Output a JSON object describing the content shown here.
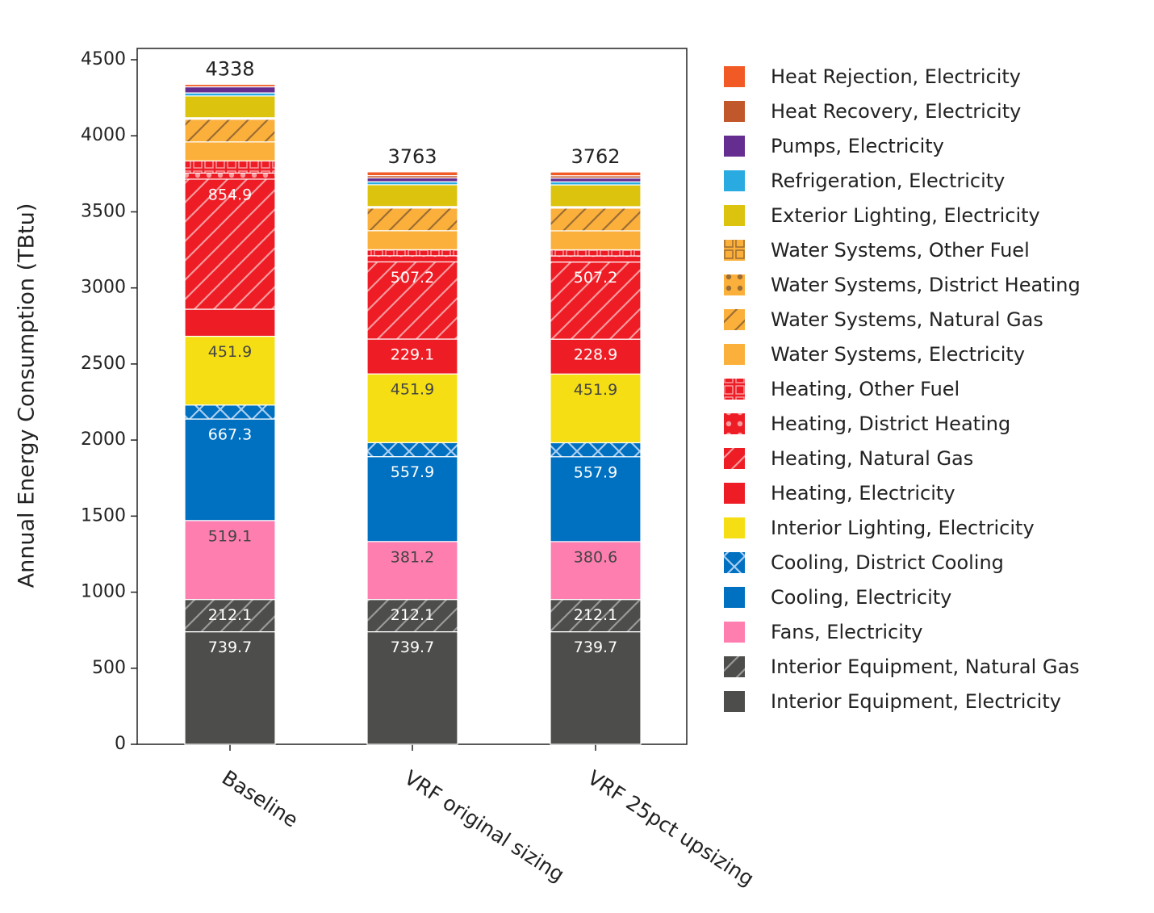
{
  "chart_data": {
    "type": "stacked_bar",
    "y_label": "Annual Energy Consumption (TBtu)",
    "categories": [
      "Baseline",
      "VRF original sizing",
      "VRF 25pct upsizing"
    ],
    "totals": [
      4338,
      3763,
      3762
    ],
    "ylim": [
      0,
      4500
    ],
    "yticks": [
      0,
      500,
      1000,
      1500,
      2000,
      2500,
      3000,
      3500,
      4000,
      4500
    ],
    "series": [
      {
        "name": "Interior Equipment, Electricity",
        "color": "#4d4d4b",
        "values": [
          739.7,
          739.7,
          739.7
        ],
        "value_labels": [
          "739.7",
          "739.7",
          "739.7"
        ],
        "label_color": "#ffffff"
      },
      {
        "name": "Interior Equipment, Natural Gas",
        "color": "#4d4d4b",
        "pattern": "slash",
        "pattern_color": "#9a9a9a",
        "values": [
          212.1,
          212.1,
          212.1
        ],
        "value_labels": [
          "212.1",
          "212.1",
          "212.1"
        ],
        "label_color": "#ffffff"
      },
      {
        "name": "Fans, Electricity",
        "color": "#ff7eb0",
        "values": [
          519.1,
          381.2,
          380.6
        ],
        "value_labels": [
          "519.1",
          "381.2",
          "380.6"
        ],
        "label_color": "#444444"
      },
      {
        "name": "Cooling, Electricity",
        "color": "#0070c0",
        "values": [
          667.3,
          557.9,
          557.9
        ],
        "value_labels": [
          "667.3",
          "557.9",
          "557.9"
        ],
        "label_color": "#ffffff"
      },
      {
        "name": "Cooling, District Cooling",
        "color": "#0070c0",
        "pattern": "cross",
        "pattern_color": "#a9cdf0",
        "values": [
          92,
          92,
          92
        ]
      },
      {
        "name": "Interior Lighting, Electricity",
        "color": "#f5df14",
        "values": [
          451.9,
          451.9,
          451.9
        ],
        "value_labels": [
          "451.9",
          "451.9",
          "451.9"
        ],
        "label_color": "#444444"
      },
      {
        "name": "Heating, Electricity",
        "color": "#ee1c25",
        "values": [
          178,
          229.1,
          228.9
        ],
        "value_labels": [
          null,
          "229.1",
          "228.9"
        ],
        "label_color": "#ffffff"
      },
      {
        "name": "Heating, Natural Gas",
        "color": "#ee1c25",
        "pattern": "slash",
        "pattern_color": "#f79a9d",
        "values": [
          854.9,
          507.2,
          507.2
        ],
        "value_labels": [
          "854.9",
          "507.2",
          "507.2"
        ],
        "label_color": "#ffffff"
      },
      {
        "name": "Heating, District Heating",
        "color": "#ee1c25",
        "pattern": "dots",
        "pattern_color": "#f79a9d",
        "values": [
          40,
          40,
          40
        ]
      },
      {
        "name": "Heating, Other Fuel",
        "color": "#ee1c25",
        "pattern": "grid",
        "pattern_color": "#f79a9d",
        "values": [
          80,
          40,
          40
        ]
      },
      {
        "name": "Water Systems, Electricity",
        "color": "#fbb03b",
        "values": [
          125,
          125,
          125
        ]
      },
      {
        "name": "Water Systems, Natural Gas",
        "color": "#fbb03b",
        "pattern": "slash",
        "pattern_color": "#9b6c33",
        "values": [
          149,
          149,
          149
        ]
      },
      {
        "name": "Water Systems, District Heating",
        "color": "#fbb03b",
        "pattern": "dots",
        "pattern_color": "#9b6c33",
        "values": [
          5,
          5,
          5
        ]
      },
      {
        "name": "Water Systems, Other Fuel",
        "color": "#fbb03b",
        "pattern": "grid",
        "pattern_color": "#9b6c33",
        "values": [
          5,
          5,
          5
        ]
      },
      {
        "name": "Exterior Lighting, Electricity",
        "color": "#dcc30e",
        "values": [
          143,
          143,
          143
        ]
      },
      {
        "name": "Refrigeration, Electricity",
        "color": "#29abe2",
        "values": [
          20,
          20,
          20
        ]
      },
      {
        "name": "Pumps, Electricity",
        "color": "#662d91",
        "values": [
          40,
          25,
          25
        ]
      },
      {
        "name": "Heat Recovery, Electricity",
        "color": "#c1582b",
        "values": [
          0,
          15,
          15
        ]
      },
      {
        "name": "Heat Rejection, Electricity",
        "color": "#f15a24",
        "values": [
          16,
          24.9,
          24.7
        ]
      }
    ]
  }
}
